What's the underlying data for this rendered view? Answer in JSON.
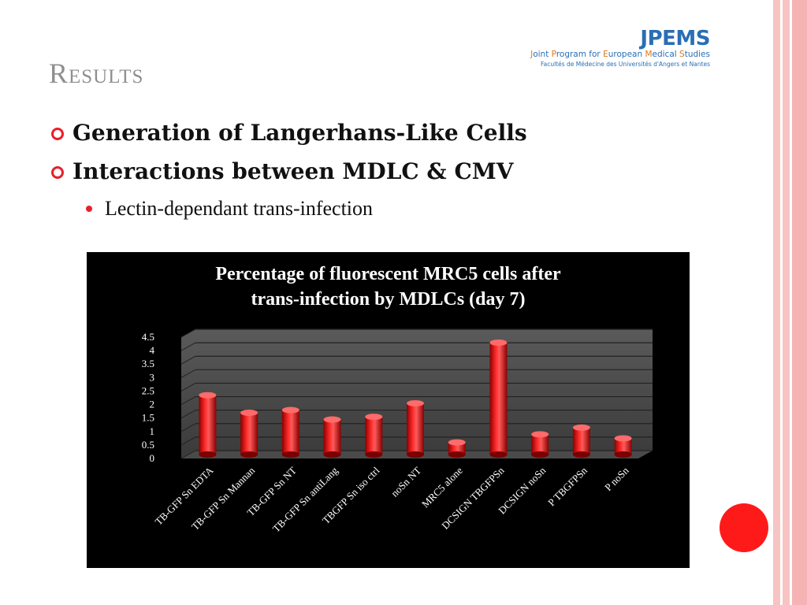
{
  "slide": {
    "title": "Results",
    "bullets": [
      "Generation of Langerhans-Like Cells",
      "Interactions between MDLC & CMV"
    ],
    "sub_bullet": "Lectin-dependant trans-infection"
  },
  "logo": {
    "name": "JPEMS",
    "tagline_parts": [
      "J",
      "oint ",
      "P",
      "rogram for ",
      "E",
      "uropean ",
      "M",
      "edical ",
      "S",
      "tudies"
    ],
    "affiliation": "Facultés de Médecine des Universités d'Angers et Nantes"
  },
  "colors": {
    "accent": "#e8202a",
    "logo_blue": "#2a6eb5",
    "logo_orange": "#e0761a",
    "bar": "#ff1a1a",
    "panel": "#000000"
  },
  "chart_data": {
    "type": "bar",
    "title": "Percentage of fluorescent MRC5 cells after trans-infection by MDLCs (day 7)",
    "title_lines": [
      "Percentage of fluorescent MRC5 cells after",
      "trans-infection by MDLCs (day 7)"
    ],
    "categories": [
      "TB-GFP Sn EDTA",
      "TB-GFP Sn Mannan",
      "TB-GFP Sn NT",
      "TB-GFP Sn antiLang",
      "TBGFP Sn iso ctrl",
      "noSn NT",
      "MRC5 alone",
      "DCSIGN TBGFPSn",
      "DCSIGN noSn",
      "P TBGFPSn",
      "P noSn"
    ],
    "values": [
      2.2,
      1.55,
      1.65,
      1.3,
      1.4,
      1.9,
      0.45,
      4.15,
      0.75,
      1.0,
      0.6
    ],
    "ylim": [
      0,
      4.5
    ],
    "yticks": [
      "0",
      "0.5",
      "1",
      "1.5",
      "2",
      "2.5",
      "3",
      "3.5",
      "4",
      "4.5"
    ],
    "grid": true,
    "style": "3d-cylinder"
  }
}
